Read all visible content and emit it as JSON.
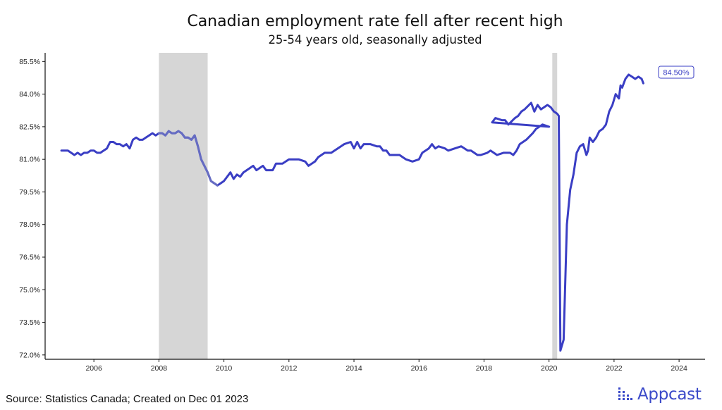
{
  "chart_data": {
    "type": "line",
    "title": "Canadian employment rate fell after recent high",
    "subtitle": "25-54 years old, seasonally adjusted",
    "xlabel": "",
    "ylabel": "",
    "xlim": [
      2004.8,
      2024.8
    ],
    "ylim": [
      71.9,
      85.9
    ],
    "x_ticks": [
      2006,
      2008,
      2010,
      2012,
      2014,
      2016,
      2018,
      2020,
      2022,
      2024
    ],
    "y_ticks": [
      72.0,
      73.5,
      75.0,
      76.5,
      78.0,
      79.5,
      81.0,
      82.5,
      84.0,
      85.5
    ],
    "y_tick_labels": [
      "72.0%",
      "73.5%",
      "75.0%",
      "76.5%",
      "78.0%",
      "79.5%",
      "81.0%",
      "82.5%",
      "84.0%",
      "85.5%"
    ],
    "x_tick_labels": [
      "2006",
      "2008",
      "2010",
      "2012",
      "2014",
      "2016",
      "2018",
      "2020",
      "2022",
      "2024"
    ],
    "recession_bands": [
      [
        2008.0,
        2009.5
      ],
      [
        2020.1,
        2020.25
      ]
    ],
    "series": [
      {
        "values": [
          [
            2005.0,
            81.4
          ],
          [
            2005.1,
            81.4
          ],
          [
            2005.2,
            81.4
          ],
          [
            2005.3,
            81.3
          ],
          [
            2005.4,
            81.2
          ],
          [
            2005.5,
            81.3
          ],
          [
            2005.6,
            81.2
          ],
          [
            2005.7,
            81.3
          ],
          [
            2005.8,
            81.3
          ],
          [
            2005.9,
            81.4
          ],
          [
            2006.0,
            81.4
          ],
          [
            2006.1,
            81.3
          ],
          [
            2006.2,
            81.3
          ],
          [
            2006.3,
            81.4
          ],
          [
            2006.4,
            81.5
          ],
          [
            2006.5,
            81.8
          ],
          [
            2006.6,
            81.8
          ],
          [
            2006.7,
            81.7
          ],
          [
            2006.8,
            81.7
          ],
          [
            2006.9,
            81.6
          ],
          [
            2007.0,
            81.7
          ],
          [
            2007.1,
            81.5
          ],
          [
            2007.2,
            81.9
          ],
          [
            2007.3,
            82.0
          ],
          [
            2007.4,
            81.9
          ],
          [
            2007.5,
            81.9
          ],
          [
            2007.6,
            82.0
          ],
          [
            2007.7,
            82.1
          ],
          [
            2007.8,
            82.2
          ],
          [
            2007.9,
            82.1
          ],
          [
            2008.0,
            82.2
          ],
          [
            2008.1,
            82.2
          ],
          [
            2008.2,
            82.1
          ],
          [
            2008.3,
            82.3
          ],
          [
            2008.4,
            82.2
          ],
          [
            2008.5,
            82.2
          ],
          [
            2008.6,
            82.3
          ],
          [
            2008.7,
            82.2
          ],
          [
            2008.8,
            82.0
          ],
          [
            2008.9,
            82.0
          ],
          [
            2009.0,
            81.9
          ],
          [
            2009.1,
            82.1
          ],
          [
            2009.2,
            81.6
          ],
          [
            2009.3,
            81.0
          ],
          [
            2009.4,
            80.7
          ],
          [
            2009.5,
            80.4
          ],
          [
            2009.6,
            80.0
          ],
          [
            2009.7,
            79.9
          ],
          [
            2009.8,
            79.8
          ],
          [
            2010.0,
            80.0
          ],
          [
            2010.2,
            80.4
          ],
          [
            2010.3,
            80.1
          ],
          [
            2010.4,
            80.3
          ],
          [
            2010.5,
            80.2
          ],
          [
            2010.6,
            80.4
          ],
          [
            2010.8,
            80.6
          ],
          [
            2010.9,
            80.7
          ],
          [
            2011.0,
            80.5
          ],
          [
            2011.2,
            80.7
          ],
          [
            2011.3,
            80.5
          ],
          [
            2011.5,
            80.5
          ],
          [
            2011.6,
            80.8
          ],
          [
            2011.8,
            80.8
          ],
          [
            2012.0,
            81.0
          ],
          [
            2012.1,
            81.0
          ],
          [
            2012.3,
            81.0
          ],
          [
            2012.5,
            80.9
          ],
          [
            2012.6,
            80.7
          ],
          [
            2012.8,
            80.9
          ],
          [
            2012.9,
            81.1
          ],
          [
            2013.1,
            81.3
          ],
          [
            2013.3,
            81.3
          ],
          [
            2013.5,
            81.5
          ],
          [
            2013.7,
            81.7
          ],
          [
            2013.9,
            81.8
          ],
          [
            2014.0,
            81.5
          ],
          [
            2014.1,
            81.8
          ],
          [
            2014.2,
            81.5
          ],
          [
            2014.3,
            81.7
          ],
          [
            2014.5,
            81.7
          ],
          [
            2014.7,
            81.6
          ],
          [
            2014.8,
            81.6
          ],
          [
            2014.9,
            81.4
          ],
          [
            2015.0,
            81.4
          ],
          [
            2015.1,
            81.2
          ],
          [
            2015.3,
            81.2
          ],
          [
            2015.4,
            81.2
          ],
          [
            2015.6,
            81.0
          ],
          [
            2015.8,
            80.9
          ],
          [
            2016.0,
            81.0
          ],
          [
            2016.1,
            81.3
          ],
          [
            2016.3,
            81.5
          ],
          [
            2016.4,
            81.7
          ],
          [
            2016.5,
            81.5
          ],
          [
            2016.6,
            81.6
          ],
          [
            2016.8,
            81.5
          ],
          [
            2016.9,
            81.4
          ],
          [
            2017.1,
            81.5
          ],
          [
            2017.3,
            81.6
          ],
          [
            2017.5,
            81.4
          ],
          [
            2017.6,
            81.4
          ],
          [
            2017.8,
            81.2
          ],
          [
            2017.9,
            81.2
          ],
          [
            2018.1,
            81.3
          ],
          [
            2018.2,
            81.4
          ],
          [
            2018.4,
            81.2
          ],
          [
            2018.6,
            81.3
          ],
          [
            2018.8,
            81.3
          ],
          [
            2018.9,
            81.2
          ],
          [
            2019.0,
            81.4
          ],
          [
            2019.1,
            81.7
          ],
          [
            2019.3,
            81.9
          ],
          [
            2019.5,
            82.2
          ],
          [
            2019.6,
            82.4
          ],
          [
            2019.8,
            82.6
          ],
          [
            2020.0,
            82.5
          ],
          [
            2020.1,
            82.7
          ],
          [
            2020.2,
            82.9
          ],
          [
            2020.4,
            82.8
          ],
          [
            2020.5,
            82.8
          ],
          [
            2020.6,
            82.6
          ],
          [
            2020.8,
            82.9
          ],
          [
            2020.9,
            83.0
          ],
          [
            2021.0,
            83.2
          ],
          [
            2021.1,
            83.3
          ],
          [
            2021.3,
            83.6
          ],
          [
            2021.4,
            83.2
          ],
          [
            2021.5,
            83.5
          ],
          [
            2021.6,
            83.3
          ],
          [
            2021.8,
            83.5
          ],
          [
            2021.9,
            83.4
          ],
          [
            2022.0,
            83.2
          ],
          [
            2022.1,
            83.1
          ],
          [
            2022.15,
            83.0
          ],
          [
            2022.2,
            72.2
          ],
          [
            2022.3,
            72.7
          ],
          [
            2022.4,
            78.0
          ],
          [
            2022.5,
            79.6
          ],
          [
            2022.6,
            80.3
          ],
          [
            2022.7,
            81.3
          ],
          [
            2022.8,
            81.6
          ],
          [
            2022.9,
            81.7
          ],
          [
            2023.0,
            81.2
          ],
          [
            2023.05,
            81.4
          ],
          [
            2023.1,
            82.0
          ],
          [
            2023.2,
            81.8
          ],
          [
            2023.3,
            82.0
          ],
          [
            2023.4,
            82.3
          ],
          [
            2023.5,
            82.4
          ],
          [
            2023.6,
            82.6
          ],
          [
            2023.7,
            83.2
          ],
          [
            2023.8,
            83.5
          ],
          [
            2023.9,
            84.0
          ],
          [
            2024.0,
            83.8
          ],
          [
            2024.05,
            84.4
          ],
          [
            2024.1,
            84.3
          ],
          [
            2024.2,
            84.7
          ],
          [
            2024.3,
            84.9
          ],
          [
            2024.4,
            84.8
          ],
          [
            2024.5,
            84.7
          ],
          [
            2024.6,
            84.8
          ],
          [
            2024.7,
            84.7
          ],
          [
            2024.75,
            84.5
          ]
        ]
      }
    ],
    "last_value_label": "84.50%",
    "grid": false,
    "legend": "none"
  },
  "footer": {
    "source": "Source: Statistics Canada; Created on Dec 01 2023",
    "brand": "Appcast"
  },
  "colors": {
    "line": "#3a3ec4",
    "line_recession": "#6f74c2",
    "band": "#d6d6d6",
    "brand": "#3a49c9"
  }
}
